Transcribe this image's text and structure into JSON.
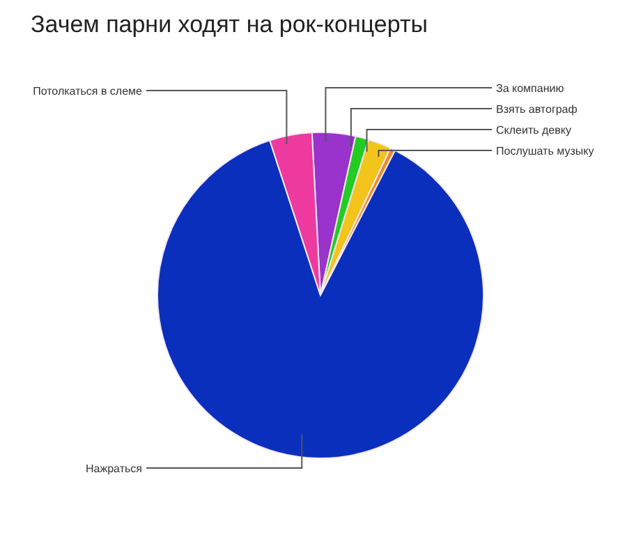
{
  "chart_data": {
    "type": "pie",
    "title": "Зачем парни ходят на рок-концерты",
    "categories": [
      "За компанию",
      "Взять автограф",
      "Склеить девку",
      "Послушать музыку",
      "Нажраться",
      "Потолкаться в слеме"
    ],
    "values": [
      4.3,
      1.3,
      2.3,
      0.5,
      87.4,
      4.2
    ],
    "colors": [
      "#9933cc",
      "#22cc22",
      "#f2c41c",
      "#f08a24",
      "#0b2fbd",
      "#ee3a9e"
    ]
  }
}
